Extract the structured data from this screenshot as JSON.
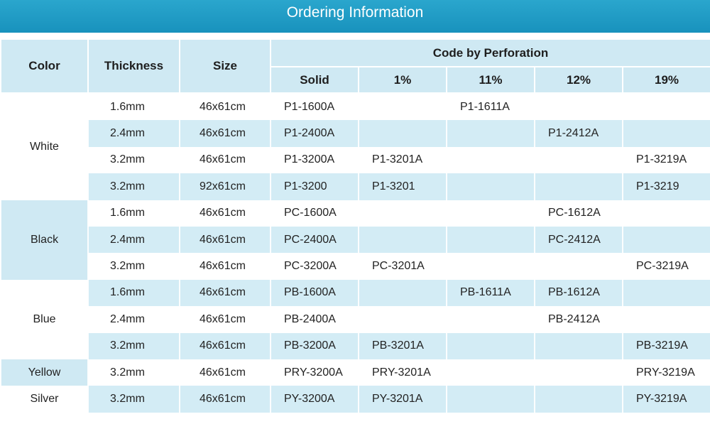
{
  "title": "Ordering Information",
  "headers": {
    "color": "Color",
    "thickness": "Thickness",
    "size": "Size",
    "group": "Code by Perforation",
    "perforations": [
      "Solid",
      "1%",
      "11%",
      "12%",
      "19%"
    ]
  },
  "groups": [
    {
      "color": "White",
      "rows": [
        {
          "thickness": "1.6mm",
          "size": "46x61cm",
          "codes": [
            "P1-1600A",
            "",
            "P1-1611A",
            "",
            ""
          ]
        },
        {
          "thickness": "2.4mm",
          "size": "46x61cm",
          "codes": [
            "P1-2400A",
            "",
            "",
            "P1-2412A",
            ""
          ]
        },
        {
          "thickness": "3.2mm",
          "size": "46x61cm",
          "codes": [
            "P1-3200A",
            "P1-3201A",
            "",
            "",
            "P1-3219A"
          ]
        },
        {
          "thickness": "3.2mm",
          "size": "92x61cm",
          "codes": [
            "P1-3200",
            "P1-3201",
            "",
            "",
            "P1-3219"
          ]
        }
      ]
    },
    {
      "color": "Black",
      "rows": [
        {
          "thickness": "1.6mm",
          "size": "46x61cm",
          "codes": [
            "PC-1600A",
            "",
            "",
            "PC-1612A",
            ""
          ]
        },
        {
          "thickness": "2.4mm",
          "size": "46x61cm",
          "codes": [
            "PC-2400A",
            "",
            "",
            "PC-2412A",
            ""
          ]
        },
        {
          "thickness": "3.2mm",
          "size": "46x61cm",
          "codes": [
            "PC-3200A",
            "PC-3201A",
            "",
            "",
            "PC-3219A"
          ]
        }
      ]
    },
    {
      "color": "Blue",
      "rows": [
        {
          "thickness": "1.6mm",
          "size": "46x61cm",
          "codes": [
            "PB-1600A",
            "",
            "PB-1611A",
            "PB-1612A",
            ""
          ]
        },
        {
          "thickness": "2.4mm",
          "size": "46x61cm",
          "codes": [
            "PB-2400A",
            "",
            "",
            "PB-2412A",
            ""
          ]
        },
        {
          "thickness": "3.2mm",
          "size": "46x61cm",
          "codes": [
            "PB-3200A",
            "PB-3201A",
            "",
            "",
            "PB-3219A"
          ]
        }
      ]
    },
    {
      "color": "Yellow",
      "rows": [
        {
          "thickness": "3.2mm",
          "size": "46x61cm",
          "codes": [
            "PRY-3200A",
            "PRY-3201A",
            "",
            "",
            "PRY-3219A"
          ]
        }
      ]
    },
    {
      "color": "Silver",
      "rows": [
        {
          "thickness": "3.2mm",
          "size": "46x61cm",
          "codes": [
            "PY-3200A",
            "PY-3201A",
            "",
            "",
            "PY-3219A"
          ]
        }
      ]
    }
  ]
}
